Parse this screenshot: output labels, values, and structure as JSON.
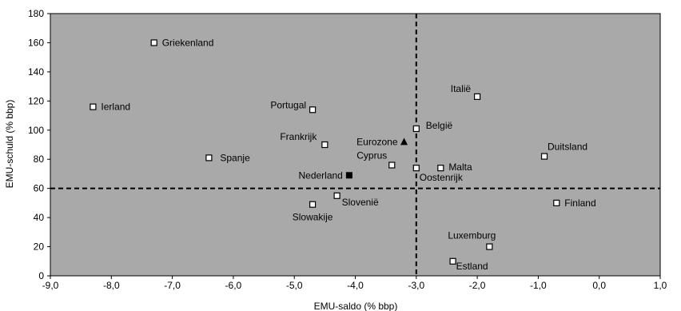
{
  "chart_data": {
    "type": "scatter",
    "title": "",
    "xlabel": "EMU-saldo (% bbp)",
    "ylabel": "EMU-schuld (% bbp)",
    "xlim": [
      -9.0,
      1.0
    ],
    "ylim": [
      0,
      180
    ],
    "x_ticks": [
      "-9,0",
      "-8,0",
      "-7,0",
      "-6,0",
      "-5,0",
      "-4,0",
      "-3,0",
      "-2,0",
      "-1,0",
      "0,0",
      "1,0"
    ],
    "y_ticks": [
      "0",
      "20",
      "40",
      "60",
      "80",
      "100",
      "120",
      "140",
      "160",
      "180"
    ],
    "reference_lines": {
      "x": -3.0,
      "y": 60
    },
    "plot_background": "#a9a9a9",
    "grid": false,
    "legend": "none",
    "points": [
      {
        "label": "Griekenland",
        "x": -7.3,
        "y": 160,
        "marker": "open-square"
      },
      {
        "label": "Ierland",
        "x": -8.3,
        "y": 116,
        "marker": "open-square"
      },
      {
        "label": "Spanje",
        "x": -6.4,
        "y": 81,
        "marker": "open-square"
      },
      {
        "label": "Portugal",
        "x": -4.7,
        "y": 114,
        "marker": "open-square"
      },
      {
        "label": "Frankrijk",
        "x": -4.5,
        "y": 90,
        "marker": "open-square"
      },
      {
        "label": "Nederland",
        "x": -4.1,
        "y": 69,
        "marker": "filled-square"
      },
      {
        "label": "Slowakije",
        "x": -4.7,
        "y": 49,
        "marker": "open-square"
      },
      {
        "label": "Slovenië",
        "x": -4.3,
        "y": 55,
        "marker": "open-square"
      },
      {
        "label": "Cyprus",
        "x": -3.4,
        "y": 76,
        "marker": "open-square"
      },
      {
        "label": "Eurozone",
        "x": -3.2,
        "y": 92,
        "marker": "filled-triangle"
      },
      {
        "label": "België",
        "x": -3.0,
        "y": 101,
        "marker": "open-square"
      },
      {
        "label": "Oostenrijk",
        "x": -3.0,
        "y": 74,
        "marker": "open-square"
      },
      {
        "label": "Malta",
        "x": -2.6,
        "y": 74,
        "marker": "open-square"
      },
      {
        "label": "Italië",
        "x": -2.0,
        "y": 123,
        "marker": "open-square"
      },
      {
        "label": "Duitsland",
        "x": -0.9,
        "y": 82,
        "marker": "open-square"
      },
      {
        "label": "Finland",
        "x": -0.7,
        "y": 50,
        "marker": "open-square"
      },
      {
        "label": "Luxemburg",
        "x": -1.8,
        "y": 20,
        "marker": "open-square"
      },
      {
        "label": "Estland",
        "x": -2.4,
        "y": 10,
        "marker": "open-square"
      }
    ]
  }
}
